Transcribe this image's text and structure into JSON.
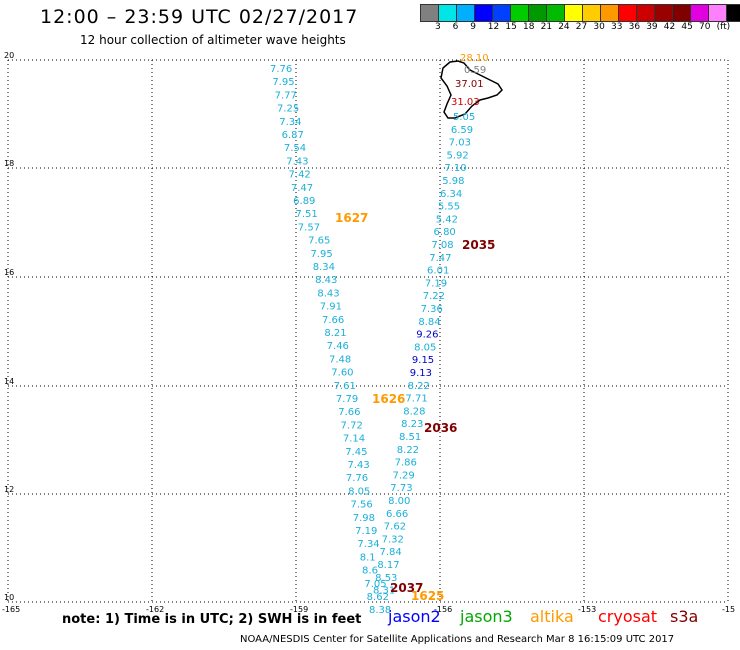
{
  "header": {
    "title": "12:00 – 23:59 UTC 02/27/2017",
    "subtitle": "12 hour collection of altimeter wave heights"
  },
  "colorbar": {
    "colors": [
      "#808080",
      "#00e5e5",
      "#00b0ff",
      "#0000ff",
      "#0040ff",
      "#00cc00",
      "#009900",
      "#00bb00",
      "#ffff00",
      "#ffcc00",
      "#ff9900",
      "#ff0000",
      "#cc0000",
      "#990000",
      "#800000",
      "#e000e0",
      "#ff80ff",
      "#000000"
    ],
    "ticks": [
      "3",
      "6",
      "9",
      "12",
      "15",
      "18",
      "21",
      "24",
      "27",
      "30",
      "33",
      "36",
      "39",
      "42",
      "45",
      "70",
      "(ft)"
    ]
  },
  "axes": {
    "lon_labels": [
      "-165",
      "-162",
      "-159",
      "-156",
      "-153",
      "-15"
    ],
    "lat_labels": [
      "20",
      "18",
      "16",
      "14",
      "12",
      "10"
    ],
    "lon_range": [
      -165,
      -150
    ],
    "lat_range": [
      10,
      20
    ]
  },
  "tracks": [
    {
      "id": "left",
      "color": "#1ab0d8",
      "values": [
        "7.76",
        "7.95",
        "7.77",
        "7.25",
        "7.34",
        "6.87",
        "7.54",
        "7.43",
        "7.42",
        "7.47",
        "6.89",
        "7.51",
        "7.57",
        "7.65",
        "7.95",
        "8.34",
        "8.43",
        "8.43",
        "7.91",
        "7.66",
        "8.21",
        "7.46",
        "7.48",
        "7.60",
        "7.61",
        "7.79",
        "7.66",
        "7.72",
        "7.14",
        "7.45",
        "7.43",
        "7.76",
        "8.05",
        "7.56",
        "7.98",
        "7.19",
        "7.34",
        "8.1",
        "8.6",
        "7.05",
        "8.62",
        "8.38"
      ]
    },
    {
      "id": "right",
      "color": "#1ab0d8",
      "values": [
        "5.05",
        "6.59",
        "7.03",
        "5.92",
        "7.10",
        "5.98",
        "6.34",
        "5.55",
        "5.42",
        "6.80",
        "7.08",
        "7.47",
        "6.01",
        "7.19",
        "7.22",
        "7.36",
        "8.84",
        "9.26",
        "8.05",
        "9.15",
        "9.13",
        "8.22",
        "7.71",
        "8.28",
        "8.23",
        "8.51",
        "8.22",
        "7.86",
        "7.29",
        "7.73",
        "8.00",
        "6.66",
        "7.62",
        "7.32",
        "7.84",
        "8.17",
        "8.53",
        "8.31"
      ]
    }
  ],
  "special_values": [
    {
      "text": "28.10",
      "color": "#ff9900"
    },
    {
      "text": "0.59",
      "color": "#808080"
    },
    {
      "text": "37.01",
      "color": "#800000"
    },
    {
      "text": "31.03",
      "color": "#cc0000"
    }
  ],
  "pass_times": [
    {
      "text": "1627",
      "color": "#ff9900"
    },
    {
      "text": "2035",
      "color": "#800000"
    },
    {
      "text": "1626",
      "color": "#ff9900"
    },
    {
      "text": "2036",
      "color": "#800000"
    },
    {
      "text": "2037",
      "color": "#800000"
    },
    {
      "text": "1625",
      "color": "#ff9900"
    }
  ],
  "footer": {
    "note": "note: 1) Time is in UTC; 2) SWH is in feet",
    "legend": [
      {
        "label": "jason2",
        "color": "#0000ff"
      },
      {
        "label": "jason3",
        "color": "#00aa00"
      },
      {
        "label": "altika",
        "color": "#ff9900"
      },
      {
        "label": "cryosat",
        "color": "#ff0000"
      },
      {
        "label": "s3a",
        "color": "#800000"
      }
    ],
    "credit": "NOAA/NESDIS Center for Satellite Applications and Research    Mar  8 16:15:09 UTC 2017"
  }
}
